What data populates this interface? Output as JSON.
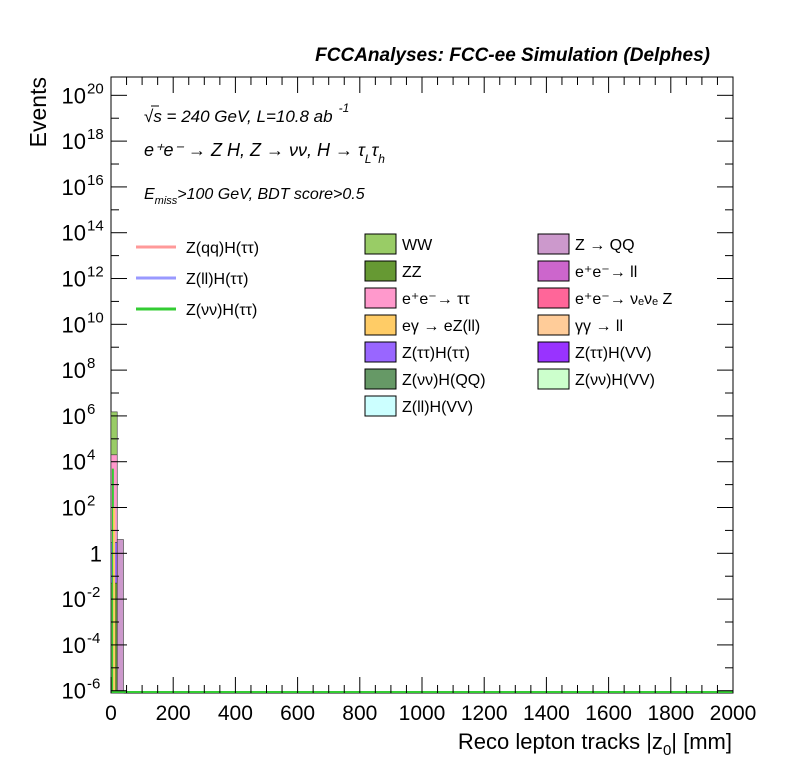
{
  "chart_data": {
    "type": "bar",
    "title": "FCCAnalyses: FCC-ee Simulation (Delphes)",
    "xlabel": "Reco lepton tracks |z",
    "xlabel_sub": "0",
    "xlabel_tail": "| [mm]",
    "ylabel": "Events",
    "xlim": [
      0,
      2000
    ],
    "ylim_log10": [
      -6.1,
      20.8
    ],
    "y_scale": "log",
    "x_ticks": [
      "0",
      "200",
      "400",
      "600",
      "800",
      "1000",
      "1200",
      "1400",
      "1600",
      "1800",
      "2000"
    ],
    "y_ticks": [
      {
        "exp": 20,
        "label": "10",
        "sup": "20"
      },
      {
        "exp": 18,
        "label": "10",
        "sup": "18"
      },
      {
        "exp": 16,
        "label": "10",
        "sup": "16"
      },
      {
        "exp": 14,
        "label": "10",
        "sup": "14"
      },
      {
        "exp": 12,
        "label": "10",
        "sup": "12"
      },
      {
        "exp": 10,
        "label": "10",
        "sup": "10"
      },
      {
        "exp": 8,
        "label": "10",
        "sup": "8"
      },
      {
        "exp": 6,
        "label": "10",
        "sup": "6"
      },
      {
        "exp": 4,
        "label": "10",
        "sup": "4"
      },
      {
        "exp": 2,
        "label": "10",
        "sup": "2"
      },
      {
        "exp": 0,
        "label": "1",
        "sup": ""
      },
      {
        "exp": -2,
        "label": "10",
        "sup": "-2"
      },
      {
        "exp": -4,
        "label": "10",
        "sup": "-4"
      },
      {
        "exp": -6,
        "label": "10",
        "sup": "-6"
      }
    ],
    "annotations": {
      "line1": "√s = 240 GeV, L=10.8 ab",
      "line1_sup": "-1",
      "line2": "e⁺e⁻ → Z H, Z  → νν, H → τ",
      "line2_sub1": "L",
      "line2_tail": "τ",
      "line2_sub2": "h",
      "line3_pre": "E",
      "line3_sub": "miss",
      "line3_tail": ">100 GeV, BDT score>0.5"
    },
    "legend_lines": [
      {
        "label": "Z(qq)H(ττ)",
        "color": "#ff9999"
      },
      {
        "label": "Z(ll)H(ττ)",
        "color": "#9999ff"
      },
      {
        "label": "Z(νν)H(ττ)",
        "color": "#33cc33"
      }
    ],
    "legend_boxes": [
      {
        "label": "WW",
        "color": "#99cc66"
      },
      {
        "label": "ZZ",
        "color": "#669933"
      },
      {
        "label": "e⁺e⁻→ ττ",
        "color": "#ff99cc"
      },
      {
        "label": "eγ → eZ(ll)",
        "color": "#ffcc66"
      },
      {
        "label": "Z(ττ)H(ττ)",
        "color": "#9966ff"
      },
      {
        "label": "Z(νν)H(QQ)",
        "color": "#669966"
      },
      {
        "label": "Z(ll)H(VV)",
        "color": "#ccffff"
      },
      {
        "label": "Z → QQ",
        "color": "#cc99cc"
      },
      {
        "label": "e⁺e⁻→ ll",
        "color": "#cc66cc"
      },
      {
        "label": "e⁺e⁻→ νₑνₑ Z",
        "color": "#ff6699"
      },
      {
        "label": "γγ → ll",
        "color": "#ffcc99"
      },
      {
        "label": "Z(ττ)H(VV)",
        "color": "#9933ff"
      },
      {
        "label": "Z(νν)H(VV)",
        "color": "#ccffcc"
      }
    ],
    "stack": [
      {
        "x0": 0,
        "x1": 20,
        "y": 1500000,
        "color": "#99cc66"
      },
      {
        "x0": 0,
        "x1": 20,
        "y": 20000,
        "color": "#ff99cc"
      },
      {
        "x0": 0,
        "x1": 20,
        "y": 3,
        "color": "#9966ff"
      },
      {
        "x0": 0,
        "x1": 20,
        "y": 0.05,
        "color": "#669933"
      },
      {
        "x0": 20,
        "x1": 40,
        "y": 4,
        "color": "#cc99cc"
      },
      {
        "x0": 20,
        "x1": 40,
        "y": 1e-06,
        "color": "#669966"
      }
    ],
    "signal_lines": [
      {
        "x": 6,
        "y": 5000,
        "color": "#33cc33"
      },
      {
        "x": 10,
        "y": 100,
        "color": "#ffcc66"
      }
    ]
  }
}
